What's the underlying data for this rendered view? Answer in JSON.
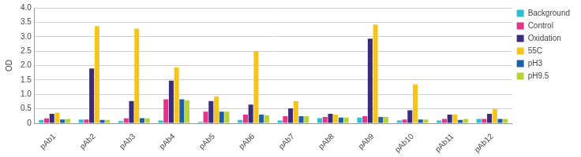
{
  "chart_data": {
    "type": "bar",
    "y_label": "OD",
    "categories": [
      "pAb1",
      "pAb2",
      "pAb3",
      "pAb4",
      "pAb5",
      "pAb6",
      "pAb7",
      "pAb8",
      "pAb9",
      "pAb10",
      "pAb11",
      "pAb12"
    ],
    "series": [
      {
        "name": "Background",
        "color": "#29c0d3",
        "values": [
          0.12,
          0.13,
          0.08,
          0.1,
          0.05,
          0.12,
          0.1,
          0.18,
          0.2,
          0.1,
          0.1,
          0.15
        ]
      },
      {
        "name": "Control",
        "color": "#e5358b",
        "values": [
          0.17,
          0.13,
          0.17,
          0.83,
          0.4,
          0.3,
          0.25,
          0.22,
          0.25,
          0.13,
          0.15,
          0.15
        ]
      },
      {
        "name": "Oxidation",
        "color": "#3d2b7c",
        "values": [
          0.33,
          1.9,
          0.77,
          1.48,
          0.77,
          0.65,
          0.52,
          0.33,
          2.93,
          0.45,
          0.3,
          0.33
        ]
      },
      {
        "name": "55C",
        "color": "#f6c51c",
        "values": [
          0.37,
          3.37,
          3.28,
          1.93,
          0.93,
          2.5,
          0.77,
          0.3,
          3.42,
          1.35,
          0.3,
          0.5
        ]
      },
      {
        "name": "pH3",
        "color": "#1f5fa8",
        "values": [
          0.13,
          0.12,
          0.18,
          0.83,
          0.4,
          0.3,
          0.25,
          0.2,
          0.22,
          0.13,
          0.12,
          0.15
        ]
      },
      {
        "name": "pH9.5",
        "color": "#b7d334",
        "values": [
          0.15,
          0.12,
          0.17,
          0.8,
          0.4,
          0.28,
          0.25,
          0.2,
          0.22,
          0.13,
          0.15,
          0.15
        ]
      }
    ],
    "ylim": [
      0,
      4
    ],
    "yticks": [
      0,
      0.5,
      {
        "value": 1,
        "label": "1.0"
      },
      1.5,
      {
        "value": 2,
        "label": "2.0"
      },
      2.5,
      {
        "value": 3,
        "label": "3.0"
      },
      3.5,
      {
        "value": 4,
        "label": "4.0"
      }
    ],
    "grid": true,
    "legend": "right"
  }
}
